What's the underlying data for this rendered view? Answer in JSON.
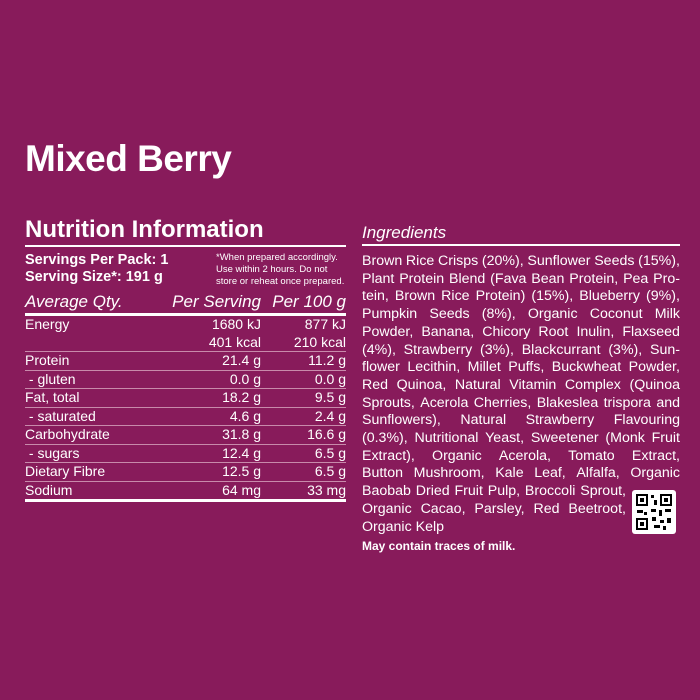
{
  "product_title": "Mixed Berry",
  "nutrition": {
    "heading": "Nutrition Information",
    "servings_per_pack": "Servings Per Pack: 1",
    "serving_size": "Serving Size*: 191 g",
    "note": "*When prepared accordingly. Use within 2 hours. Do not store or reheat once prepared.",
    "columns": [
      "Average Qty.",
      "Per Serving",
      "Per 100 g"
    ],
    "rows": [
      {
        "name": "Energy",
        "serving": "1680 kJ",
        "per100": "877 kJ"
      },
      {
        "name": "",
        "serving": "401 kcal",
        "per100": "210 kcal"
      },
      {
        "name": "Protein",
        "serving": "21.4 g",
        "per100": "11.2 g"
      },
      {
        "name": " - gluten",
        "serving": "0.0 g",
        "per100": "0.0 g"
      },
      {
        "name": "Fat, total",
        "serving": "18.2 g",
        "per100": "9.5 g"
      },
      {
        "name": " - saturated",
        "serving": "4.6 g",
        "per100": "2.4 g"
      },
      {
        "name": "Carbohydrate",
        "serving": "31.8 g",
        "per100": "16.6 g"
      },
      {
        "name": " - sugars",
        "serving": "12.4 g",
        "per100": "6.5 g"
      },
      {
        "name": "Dietary Fibre",
        "serving": "12.5 g",
        "per100": "6.5 g"
      },
      {
        "name": "Sodium",
        "serving": "64 mg",
        "per100": "33 mg"
      }
    ]
  },
  "ingredients": {
    "heading": "Ingredients",
    "lines": [
      "Brown Rice Crisps (20%), Sunflower Seeds (15%),",
      "Plant Protein Blend (Fava Bean Protein, Pea Pro-",
      "tein, Brown Rice Protein) (15%), Blueberry (9%),",
      "Pumpkin Seeds (8%), Organic Coconut Milk",
      "Powder, Banana, Chicory Root Inulin, Flaxseed",
      "(4%), Strawberry (3%), Blackcurrant (3%), Sun-",
      "flower Lecithin, Millet Puffs, Buckwheat Powder,",
      "Red Quinoa, Natural Vitamin Complex (Quinoa",
      "Sprouts, Acerola Cherries, Blakeslea trispora and",
      "Sunflowers), Natural Strawberry Flavouring",
      "(0.3%), Nutritional Yeast, Sweetener (Monk Fruit",
      "Extract), Organic Acerola, Tomato Extract,",
      "Button Mushroom, Kale Leaf, Alfalfa, Organic",
      "Baobab Dried Fruit Pulp, Broccoli Sprout,",
      "Organic Cacao, Parsley, Red Beetroot,",
      "Organic Kelp"
    ],
    "allergen": "May contain traces of milk."
  },
  "colors": {
    "background": "#881b5b",
    "text": "#ffffff"
  },
  "icons": [
    "qr-code-icon"
  ]
}
